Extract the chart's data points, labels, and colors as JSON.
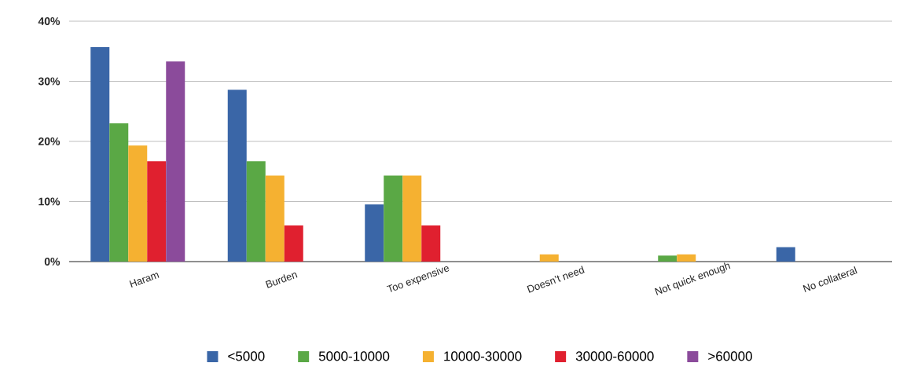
{
  "chart_data": {
    "type": "bar",
    "categories": [
      "Haram",
      "Burden",
      "Too expensive",
      "Doesn’t need",
      "Not quick enough",
      "No collateral"
    ],
    "series": [
      {
        "name": "<5000",
        "color": "#3a66a7",
        "values": [
          35.7,
          28.6,
          9.5,
          0,
          0,
          2.4
        ]
      },
      {
        "name": "5000-10000",
        "color": "#5aa845",
        "values": [
          23,
          16.7,
          14.3,
          0,
          1.0,
          0
        ]
      },
      {
        "name": "10000-30000",
        "color": "#f5b131",
        "values": [
          19.3,
          14.3,
          14.3,
          1.2,
          1.2,
          0
        ]
      },
      {
        "name": "30000-60000",
        "color": "#e0202f",
        "values": [
          16.7,
          6.0,
          6.0,
          0,
          0,
          0
        ]
      },
      {
        "name": ">60000",
        "color": "#8b4b9b",
        "values": [
          33.3,
          0,
          0,
          0,
          0,
          0
        ]
      }
    ],
    "ylim": [
      0,
      40
    ],
    "yticks": [
      {
        "value": 0,
        "label": "0%"
      },
      {
        "value": 10,
        "label": "10%"
      },
      {
        "value": 20,
        "label": "20%"
      },
      {
        "value": 30,
        "label": "30%"
      },
      {
        "value": 40,
        "label": "40%"
      }
    ],
    "grid": "y",
    "legend": "bottom"
  }
}
